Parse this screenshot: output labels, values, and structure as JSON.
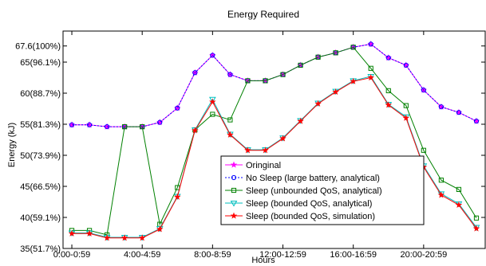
{
  "chart_data": {
    "type": "line",
    "title": "Energy Required",
    "xlabel": "Hours",
    "ylabel": "Energy (kJ)",
    "xlim": [
      0,
      24
    ],
    "ylim": [
      35,
      70
    ],
    "grid": false,
    "legend_position": "bottom-center",
    "x": [
      0.5,
      1.5,
      2.5,
      3.5,
      4.5,
      5.5,
      6.5,
      7.5,
      8.5,
      9.5,
      10.5,
      11.5,
      12.5,
      13.5,
      14.5,
      15.5,
      16.5,
      17.5,
      18.5,
      19.5,
      20.5,
      21.5,
      22.5,
      23.5
    ],
    "xticks": [
      {
        "value": 0.5,
        "label": "0:00-0:59"
      },
      {
        "value": 4.5,
        "label": "4:00-4:59"
      },
      {
        "value": 8.5,
        "label": "8:00-8:59"
      },
      {
        "value": 12.5,
        "label": "12:00-12:59"
      },
      {
        "value": 16.5,
        "label": "16:00-16:59"
      },
      {
        "value": 20.5,
        "label": "20:00-20:59"
      }
    ],
    "yticks": [
      {
        "value": 35,
        "label": "35(51.7%)"
      },
      {
        "value": 40,
        "label": "40(59.1%)"
      },
      {
        "value": 45,
        "label": "45(66.5%)"
      },
      {
        "value": 50,
        "label": "50(73.9%)"
      },
      {
        "value": 55,
        "label": "55(81.3%)"
      },
      {
        "value": 60,
        "label": "60(88.7%)"
      },
      {
        "value": 65,
        "label": "65(96.1%)"
      },
      {
        "value": 67.6,
        "label": "67.6(100%)"
      }
    ],
    "series": [
      {
        "name": "Oringinal",
        "color": "#ff00ff",
        "marker": "star",
        "dash": "",
        "values": [
          54.9,
          54.9,
          54.6,
          54.6,
          54.6,
          55.3,
          57.6,
          63.3,
          66.1,
          63.0,
          62.0,
          62.0,
          63.0,
          64.5,
          65.8,
          66.5,
          67.4,
          67.9,
          65.7,
          64.5,
          60.5,
          57.8,
          56.9,
          55.5
        ]
      },
      {
        "name": "No Sleep (large battery, analytical)",
        "color": "#0000ff",
        "marker": "circle",
        "dash": "2,2",
        "values": [
          54.9,
          54.9,
          54.6,
          54.6,
          54.6,
          55.3,
          57.6,
          63.3,
          66.1,
          63.0,
          62.0,
          62.0,
          63.0,
          64.5,
          65.8,
          66.5,
          67.4,
          67.9,
          65.7,
          64.5,
          60.5,
          57.8,
          56.9,
          55.5
        ]
      },
      {
        "name": "Sleep (unbounded QoS, analytical)",
        "color": "#008000",
        "marker": "square",
        "dash": "",
        "values": [
          37.9,
          37.9,
          37.2,
          54.6,
          54.6,
          38.9,
          44.8,
          54.1,
          56.6,
          55.7,
          62.0,
          62.0,
          63.0,
          64.5,
          65.8,
          66.5,
          67.4,
          64.0,
          60.4,
          58.0,
          50.8,
          46.0,
          44.5,
          39.9
        ]
      },
      {
        "name": "Sleep (bounded QoS, analytical)",
        "color": "#00bfbf",
        "marker": "triangle-down",
        "dash": "",
        "values": [
          37.5,
          37.5,
          36.8,
          36.8,
          36.8,
          38.2,
          43.4,
          54.1,
          59.0,
          53.4,
          50.9,
          50.9,
          52.8,
          55.6,
          58.4,
          60.3,
          62.0,
          62.7,
          58.2,
          56.2,
          48.3,
          43.8,
          42.2,
          38.4
        ]
      },
      {
        "name": "Sleep (bounded QoS, simulation)",
        "color": "#ff0000",
        "marker": "star",
        "dash": "",
        "values": [
          37.4,
          37.4,
          36.7,
          36.7,
          36.7,
          38.1,
          43.3,
          54.0,
          58.6,
          53.3,
          50.8,
          50.8,
          52.7,
          55.5,
          58.3,
          60.2,
          61.9,
          62.5,
          58.1,
          56.0,
          48.1,
          43.6,
          42.0,
          38.2
        ]
      }
    ]
  }
}
